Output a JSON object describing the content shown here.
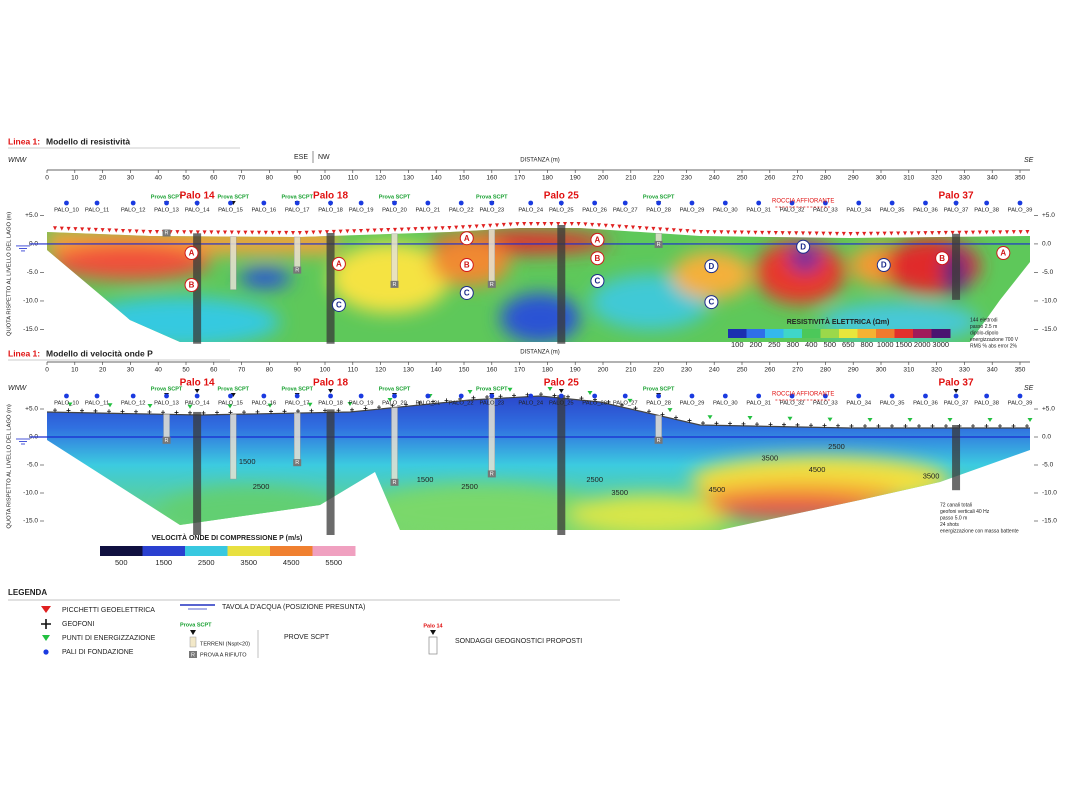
{
  "chart_data": [
    {
      "type": "contour",
      "title_prefix": "Linea 1:",
      "title": "Modello di resistività",
      "x_label": "DISTANZA (m)",
      "y_label": "QUOTA RISPETTO AL LIVELLO DEL LAGO (m)",
      "left_direction": "WNW",
      "right_direction": "SE",
      "mid_directions": [
        "ESE",
        "NW"
      ],
      "xlim": [
        0,
        360
      ],
      "xticks": [
        0,
        10,
        20,
        30,
        40,
        50,
        60,
        70,
        80,
        90,
        100,
        110,
        120,
        130,
        140,
        150,
        160,
        170,
        180,
        190,
        200,
        210,
        220,
        230,
        240,
        250,
        260,
        270,
        280,
        290,
        300,
        310,
        320,
        330,
        340,
        350
      ],
      "ylim": [
        -17.5,
        7
      ],
      "yticks": [
        {
          "value": 5,
          "label": "+5.0"
        },
        {
          "value": 0,
          "label": "0.0"
        },
        {
          "value": -5,
          "label": "-5.0"
        },
        {
          "value": -10,
          "label": "-10.0"
        },
        {
          "value": -15,
          "label": "-15.0"
        }
      ],
      "piles": {
        "names": [
          "PALO_10",
          "PALO_11",
          "PALO_12",
          "PALO_13",
          "PALO_14",
          "PALO_15",
          "PALO_16",
          "PALO_17",
          "PALO_18",
          "PALO_19",
          "PALO_20",
          "PALO_21",
          "PALO_22",
          "PALO_23",
          "PALO_24",
          "PALO_25",
          "PALO_26",
          "PALO_27",
          "PALO_28",
          "PALO_29",
          "PALO_30",
          "PALO_31",
          "PALO_32",
          "PALO_33",
          "PALO_34",
          "PALO_35",
          "PALO_36",
          "PALO_37",
          "PALO_38",
          "PALO_39"
        ],
        "x": [
          7,
          18,
          31,
          43,
          54,
          66,
          78,
          90,
          102,
          113,
          125,
          137,
          149,
          160,
          174,
          185,
          197,
          208,
          220,
          232,
          244,
          256,
          268,
          280,
          292,
          304,
          316,
          327,
          338,
          350
        ]
      },
      "highlighted_piles": [
        {
          "label": "Palo 14",
          "x": 54,
          "bottom": -17.5
        },
        {
          "label": "Palo 18",
          "x": 102,
          "bottom": -17.5
        },
        {
          "label": "Palo 25",
          "x": 185,
          "bottom": -17.5
        },
        {
          "label": "Palo 37",
          "x": 327,
          "bottom": -9.8
        }
      ],
      "scpt": {
        "label": "Prova SCPT",
        "x": [
          43,
          67,
          90,
          125,
          160,
          220
        ],
        "bottom": [
          2,
          -8,
          -4.5,
          -7,
          -7,
          0
        ],
        "refusal": [
          true,
          false,
          true,
          true,
          true,
          true
        ]
      },
      "refusal_label": "R",
      "rock_outcrop": {
        "label": "ROCCIA AFFIORANTE",
        "x": [
          262,
          282
        ]
      },
      "zones": [
        {
          "label": "A",
          "x": 52,
          "y": -1.6
        },
        {
          "label": "B",
          "x": 52,
          "y": -7.2
        },
        {
          "label": "A",
          "x": 105,
          "y": -3.5
        },
        {
          "label": "C",
          "x": 105,
          "y": -10.7
        },
        {
          "label": "A",
          "x": 151,
          "y": 1
        },
        {
          "label": "B",
          "x": 151,
          "y": -3.7
        },
        {
          "label": "C",
          "x": 151,
          "y": -8.6
        },
        {
          "label": "A",
          "x": 198,
          "y": 0.7
        },
        {
          "label": "B",
          "x": 198,
          "y": -2.5
        },
        {
          "label": "C",
          "x": 198,
          "y": -6.5
        },
        {
          "label": "D",
          "x": 239,
          "y": -3.9
        },
        {
          "label": "C",
          "x": 239,
          "y": -10.2
        },
        {
          "label": "D",
          "x": 272,
          "y": -0.5
        },
        {
          "label": "D",
          "x": 301,
          "y": -3.7
        },
        {
          "label": "B",
          "x": 322,
          "y": -2.5
        },
        {
          "label": "A",
          "x": 344,
          "y": -1.6
        }
      ],
      "colorbar": {
        "label": "RESISTIVITÀ ELETTRICA (Ωm)",
        "ticks": [
          100,
          200,
          250,
          300,
          400,
          500,
          650,
          800,
          1000,
          1500,
          2000,
          3000
        ],
        "colors": [
          "#1b2fb0",
          "#2f6fe8",
          "#34b8ec",
          "#3fd6c8",
          "#4cc85a",
          "#9bd84a",
          "#e8e63c",
          "#f5b232",
          "#f07a2e",
          "#e2302c",
          "#a01c5a",
          "#4a1470"
        ]
      },
      "notes": [
        "144 elettrodi",
        "passo 2.5 m",
        "dipolo-dipolo",
        "energizzazione 700 V",
        "RMS % abs error 2%"
      ]
    },
    {
      "type": "contour",
      "title_prefix": "Linea 1:",
      "title": "Modello di velocità onde P",
      "x_label": "DISTANZA (m)",
      "y_label": "QUOTA RISPETTO AL LIVELLO DEL LAGO (m)",
      "left_direction": "WNW",
      "right_direction": "SE",
      "xlim": [
        0,
        360
      ],
      "xticks": [
        0,
        10,
        20,
        30,
        40,
        50,
        60,
        70,
        80,
        90,
        100,
        110,
        120,
        130,
        140,
        150,
        160,
        170,
        180,
        190,
        200,
        210,
        220,
        230,
        240,
        250,
        260,
        270,
        280,
        290,
        300,
        310,
        320,
        330,
        340,
        350
      ],
      "ylim": [
        -17.5,
        7
      ],
      "yticks": [
        {
          "value": 5,
          "label": "+5.0"
        },
        {
          "value": 0,
          "label": "0.0"
        },
        {
          "value": -5,
          "label": "-5.0"
        },
        {
          "value": -10,
          "label": "-10.0"
        },
        {
          "value": -15,
          "label": "-15.0"
        }
      ],
      "piles": {
        "names": [
          "PALO_10",
          "PALO_11",
          "PALO_12",
          "PALO_13",
          "PALO_14",
          "PALO_15",
          "PALO_16",
          "PALO_17",
          "PALO_18",
          "PALO_19",
          "PALO_20",
          "PALO_21",
          "PALO_22",
          "PALO_23",
          "PALO_24",
          "PALO_25",
          "PALO_26",
          "PALO_27",
          "PALO_28",
          "PALO_29",
          "PALO_30",
          "PALO_31",
          "PALO_32",
          "PALO_33",
          "PALO_34",
          "PALO_35",
          "PALO_36",
          "PALO_37",
          "PALO_38",
          "PALO_39"
        ],
        "x": [
          7,
          18,
          31,
          43,
          54,
          66,
          78,
          90,
          102,
          113,
          125,
          137,
          149,
          160,
          174,
          185,
          197,
          208,
          220,
          232,
          244,
          256,
          268,
          280,
          292,
          304,
          316,
          327,
          338,
          350
        ]
      },
      "highlighted_piles": [
        {
          "label": "Palo 14",
          "x": 54,
          "bottom": -17.5
        },
        {
          "label": "Palo 18",
          "x": 102,
          "bottom": -17.5
        },
        {
          "label": "Palo 25",
          "x": 185,
          "bottom": -17.5
        },
        {
          "label": "Palo 37",
          "x": 327,
          "bottom": -9.5
        }
      ],
      "scpt": {
        "label": "Prova SCPT",
        "x": [
          43,
          67,
          90,
          125,
          160,
          220
        ],
        "bottom": [
          -0.5,
          -7.5,
          -4.5,
          -8,
          -6.5,
          -0.5
        ],
        "refusal": [
          true,
          false,
          true,
          true,
          true,
          true
        ]
      },
      "refusal_label": "R",
      "rock_outcrop": {
        "label": "ROCCIA AFFIORANTE",
        "x": [
          262,
          282
        ]
      },
      "contour_labels": [
        {
          "value": 1500,
          "x": 72,
          "y": -4.5
        },
        {
          "value": 2500,
          "x": 77,
          "y": -8.9
        },
        {
          "value": 1500,
          "x": 136,
          "y": -7.7
        },
        {
          "value": 2500,
          "x": 152,
          "y": -8.9
        },
        {
          "value": 2500,
          "x": 197,
          "y": -7.7
        },
        {
          "value": 3500,
          "x": 206,
          "y": -10
        },
        {
          "value": 4500,
          "x": 241,
          "y": -9.5
        },
        {
          "value": 3500,
          "x": 260,
          "y": -3.8
        },
        {
          "value": 4500,
          "x": 277,
          "y": -5.9
        },
        {
          "value": 2500,
          "x": 284,
          "y": -1.8
        },
        {
          "value": 3500,
          "x": 318,
          "y": -7.1
        }
      ],
      "colorbar": {
        "label": "VELOCITÀ ONDE DI COMPRESSIONE P (m/s)",
        "ticks": [
          500,
          1500,
          2500,
          3500,
          4500,
          5500
        ],
        "colors": [
          "#101040",
          "#2a40d0",
          "#38c8e0",
          "#e8e040",
          "#f08030",
          "#f0a0c0"
        ]
      },
      "notes": [
        "72 canali totali",
        "geofoni verticali 40 Hz",
        "passo 5.0 m",
        "24 shots",
        "energizzazione con massa battente"
      ]
    }
  ],
  "legend": {
    "title": "LEGENDA",
    "items": [
      "PICCHETTI GEOELETTRICA",
      "GEOFONI",
      "PUNTI DI ENERGIZZAZIONE",
      "PALI DI FONDAZIONE"
    ],
    "water_table": "TAVOLA D'ACQUA (POSIZIONE PRESUNTA)",
    "scpt_title": "Prova SCPT",
    "scpt_soil": "TERRENI (Nspt<20)",
    "scpt_refusal_mark": "R",
    "scpt_refusal": "PROVA A RIFIUTO",
    "scpt_label": "PROVE SCPT",
    "boring_title": "Palo 14",
    "boring_label": "SONDAGGI GEOGNOSTICI PROPOSTI"
  }
}
